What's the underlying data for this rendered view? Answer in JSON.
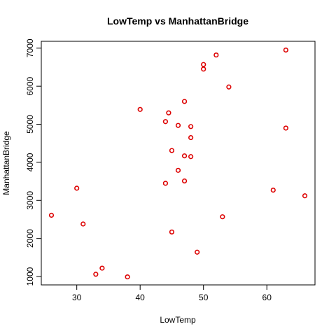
{
  "chart_data": {
    "type": "scatter",
    "title": "LowTemp vs ManhattanBridge",
    "xlabel": "LowTemp",
    "ylabel": "ManhattanBridge",
    "xlim": [
      24.4,
      67.6
    ],
    "ylim": [
      780,
      7180
    ],
    "xticks": [
      30,
      40,
      50,
      60
    ],
    "yticks": [
      1000,
      2000,
      3000,
      4000,
      5000,
      6000,
      7000
    ],
    "xtick_labels": [
      "30",
      "40",
      "50",
      "60"
    ],
    "ytick_labels": [
      "1000",
      "2000",
      "3000",
      "4000",
      "5000",
      "6000",
      "7000"
    ],
    "marker_color": "#dd0000",
    "grid": false,
    "legend": "none",
    "points": [
      {
        "x": 26,
        "y": 2610
      },
      {
        "x": 30,
        "y": 3320
      },
      {
        "x": 31,
        "y": 2380
      },
      {
        "x": 33,
        "y": 1060
      },
      {
        "x": 34,
        "y": 1220
      },
      {
        "x": 38,
        "y": 990
      },
      {
        "x": 40,
        "y": 5390
      },
      {
        "x": 44,
        "y": 5070
      },
      {
        "x": 44,
        "y": 3450
      },
      {
        "x": 44.5,
        "y": 5300
      },
      {
        "x": 45,
        "y": 4310
      },
      {
        "x": 45,
        "y": 2170
      },
      {
        "x": 46,
        "y": 4970
      },
      {
        "x": 46,
        "y": 3790
      },
      {
        "x": 47,
        "y": 5600
      },
      {
        "x": 47,
        "y": 4170
      },
      {
        "x": 47,
        "y": 3510
      },
      {
        "x": 48,
        "y": 4940
      },
      {
        "x": 48,
        "y": 4650
      },
      {
        "x": 48,
        "y": 4150
      },
      {
        "x": 49,
        "y": 1640
      },
      {
        "x": 50,
        "y": 6570
      },
      {
        "x": 50,
        "y": 6450
      },
      {
        "x": 52,
        "y": 6820
      },
      {
        "x": 53,
        "y": 2570
      },
      {
        "x": 54,
        "y": 5980
      },
      {
        "x": 61,
        "y": 3270
      },
      {
        "x": 63,
        "y": 6950
      },
      {
        "x": 63,
        "y": 4900
      },
      {
        "x": 66,
        "y": 3120
      }
    ]
  }
}
